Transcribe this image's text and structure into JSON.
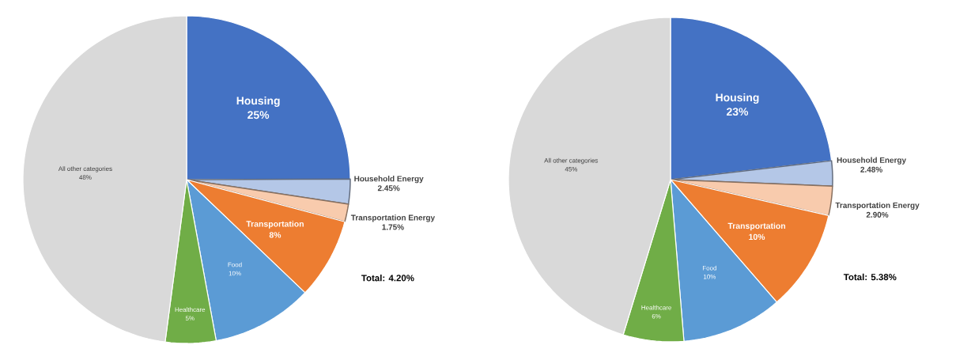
{
  "chart_data": [
    {
      "type": "pie",
      "categories": [
        "Housing",
        "Household Energy",
        "Transportation Energy",
        "Transportation",
        "Food",
        "Healthcare",
        "All other categories"
      ],
      "values": [
        25,
        2.45,
        1.75,
        8,
        10,
        5,
        48
      ],
      "value_labels": [
        "25%",
        "2.45%",
        "1.75%",
        "8%",
        "10%",
        "5%",
        "48%"
      ],
      "colors": [
        "#4472c4",
        "#b4c7e7",
        "#f8cbad",
        "#ed7d31",
        "#5b9bd5",
        "#70ad47",
        "#d9d9d9"
      ],
      "annotations": [
        "Total: 4.20%"
      ]
    },
    {
      "type": "pie",
      "categories": [
        "Housing",
        "Household Energy",
        "Transportation Energy",
        "Transportation",
        "Food",
        "Healthcare",
        "All other categories"
      ],
      "values": [
        23,
        2.48,
        2.9,
        10,
        10,
        6,
        45
      ],
      "value_labels": [
        "23%",
        "2.48%",
        "2.90%",
        "10%",
        "10%",
        "6%",
        "45%"
      ],
      "colors": [
        "#4472c4",
        "#b4c7e7",
        "#f8cbad",
        "#ed7d31",
        "#5b9bd5",
        "#70ad47",
        "#d9d9d9"
      ],
      "annotations": [
        "Total: 5.38%"
      ]
    }
  ]
}
